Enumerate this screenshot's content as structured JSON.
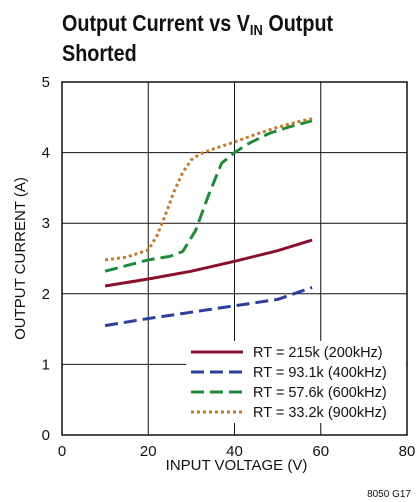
{
  "chart_data": {
    "type": "line",
    "title_main": "Output Current vs V",
    "title_sub": "IN",
    "title_rest": " Output",
    "title_line2": "Shorted",
    "xlabel": "INPUT VOLTAGE (V)",
    "ylabel": "OUTPUT CURRENT (A)",
    "xlim": [
      0,
      80
    ],
    "ylim": [
      0,
      5
    ],
    "xticks": [
      0,
      20,
      40,
      60,
      80
    ],
    "yticks": [
      0,
      1,
      2,
      3,
      4,
      5
    ],
    "grid": true,
    "legend_position": "bottom-right",
    "figure_code": "8050 G17",
    "series": [
      {
        "name": "RT = 215k (200kHz)",
        "color": "#8b1030",
        "dash": "solid",
        "x": [
          10,
          20,
          30,
          40,
          50,
          58
        ],
        "y": [
          2.11,
          2.21,
          2.32,
          2.46,
          2.61,
          2.76
        ]
      },
      {
        "name": "RT = 93.1k (400kHz)",
        "color": "#2e3f9a",
        "dash": "dashed",
        "x": [
          10,
          20,
          30,
          40,
          50,
          58
        ],
        "y": [
          1.55,
          1.65,
          1.74,
          1.83,
          1.92,
          2.09
        ]
      },
      {
        "name": "RT = 57.6k (600kHz)",
        "color": "#1f8a3a",
        "dash": "dashed",
        "x": [
          10,
          15,
          20,
          25,
          28,
          31,
          34,
          37,
          40,
          43,
          48,
          53,
          58
        ],
        "y": [
          2.32,
          2.4,
          2.48,
          2.53,
          2.6,
          2.9,
          3.4,
          3.85,
          4.0,
          4.12,
          4.27,
          4.37,
          4.45
        ]
      },
      {
        "name": "RT = 33.2k (900kHz)",
        "color": "#c47a2c",
        "dash": "dotted",
        "x": [
          10,
          15,
          20,
          22,
          24,
          26,
          28,
          30,
          32,
          35,
          40,
          45,
          50,
          55,
          58
        ],
        "y": [
          2.48,
          2.52,
          2.62,
          2.82,
          3.12,
          3.45,
          3.72,
          3.9,
          3.98,
          4.05,
          4.15,
          4.26,
          4.36,
          4.44,
          4.48
        ]
      }
    ]
  }
}
